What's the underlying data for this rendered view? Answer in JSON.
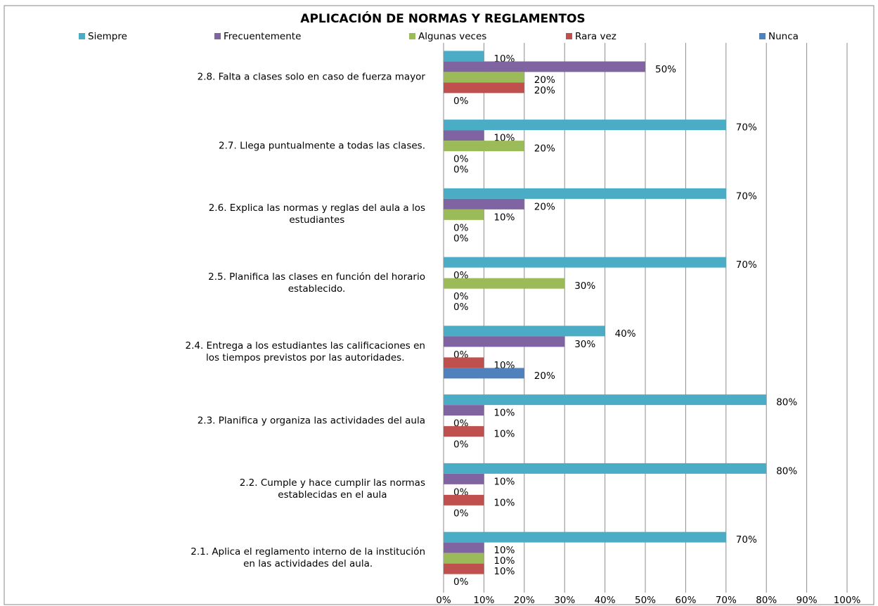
{
  "chart_data": {
    "type": "hbar",
    "title": "APLICACIÓN DE NORMAS Y REGLAMENTOS",
    "categories": [
      "2.1.  Aplica el reglamento interno de la institución\nen las actividades del aula.",
      "2.2.  Cumple y hace cumplir  las normas\nestablecidas en el aula",
      "2.3.  Planifica y organiza las actividades del aula",
      "2.4.  Entrega a los estudiantes las calificaciones en\nlos tiempos previstos por las autoridades.",
      "2.5.  Planifica las clases en función del horario\nestablecido.",
      "2.6.  Explica las normas y reglas del aula a los\nestudiantes",
      "2.7.  Llega puntualmente a todas las clases.",
      "2.8.  Falta a  clases solo en caso de fuerza mayor"
    ],
    "series": [
      {
        "name": "Siempre",
        "color": "#4bacc6",
        "values": [
          70,
          80,
          80,
          40,
          70,
          70,
          70,
          10
        ],
        "value_labels": [
          "70%",
          "80%",
          "80%",
          "40%",
          "70%",
          "70%",
          "70%",
          "10%"
        ]
      },
      {
        "name": "Frecuentemente",
        "color": "#8064a2",
        "values": [
          10,
          10,
          10,
          30,
          0,
          20,
          10,
          50
        ],
        "value_labels": [
          "10%",
          "10%",
          "10%",
          "30%",
          "0%",
          "20%",
          "10%",
          "50%"
        ]
      },
      {
        "name": "Algunas veces",
        "color": "#9bbb59",
        "values": [
          10,
          0,
          0,
          0,
          30,
          10,
          20,
          20
        ],
        "value_labels": [
          "10%",
          "0%",
          "0%",
          "0%",
          "30%",
          "10%",
          "20%",
          "20%"
        ]
      },
      {
        "name": "Rara vez",
        "color": "#c0504d",
        "values": [
          10,
          10,
          10,
          10,
          0,
          0,
          0,
          20
        ],
        "value_labels": [
          "10%",
          "10%",
          "10%",
          "10%",
          "0%",
          "0%",
          "0%",
          "20%"
        ]
      },
      {
        "name": "Nunca",
        "color": "#4f81bd",
        "values": [
          0,
          0,
          0,
          20,
          0,
          0,
          0,
          0
        ],
        "value_labels": [
          "0%",
          "0%",
          "0%",
          "20%",
          "0%",
          "0%",
          "0%",
          "0%"
        ]
      }
    ],
    "xlim": [
      0,
      100
    ],
    "xticks": [
      {
        "value": 0,
        "label": "0%"
      },
      {
        "value": 10,
        "label": "10%"
      },
      {
        "value": 20,
        "label": "20%"
      },
      {
        "value": 30,
        "label": "30%"
      },
      {
        "value": 40,
        "label": "40%"
      },
      {
        "value": 50,
        "label": "50%"
      },
      {
        "value": 60,
        "label": "60%"
      },
      {
        "value": 70,
        "label": "70%"
      },
      {
        "value": 80,
        "label": "80%"
      },
      {
        "value": 90,
        "label": "90%"
      },
      {
        "value": 100,
        "label": "100%"
      }
    ],
    "grid": true,
    "legend": "top"
  }
}
